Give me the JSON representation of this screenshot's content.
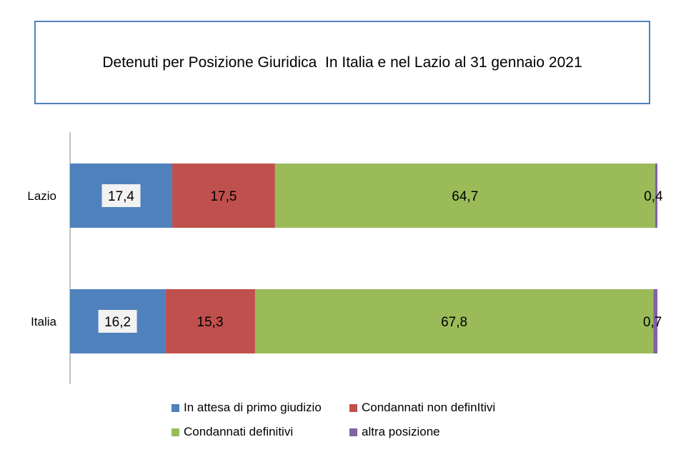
{
  "chart_data": {
    "type": "bar",
    "orientation": "horizontal",
    "stacked": true,
    "title": "Detenuti per Posizione Giuridica  In Italia e nel Lazio al 31 gennaio 2021",
    "categories": [
      "Lazio",
      "Italia"
    ],
    "series": [
      {
        "name": "In attesa di primo giudizio",
        "color": "#4f81bd",
        "values": [
          17.4,
          16.2
        ],
        "labels": [
          "17,4",
          "16,2"
        ]
      },
      {
        "name": "Condannati non definItivi",
        "color": "#c0504d",
        "values": [
          17.5,
          15.3
        ],
        "labels": [
          "17,5",
          "15,3"
        ]
      },
      {
        "name": "Condannati definitivi",
        "color": "#9bbb59",
        "values": [
          64.7,
          67.8
        ],
        "labels": [
          "64,7",
          "67,8"
        ]
      },
      {
        "name": "altra posizione",
        "color": "#8064a2",
        "values": [
          0.4,
          0.7
        ],
        "labels": [
          "0,4",
          "0,7"
        ]
      }
    ],
    "xlim": [
      0,
      100
    ],
    "grid": false,
    "legend_position": "bottom"
  }
}
